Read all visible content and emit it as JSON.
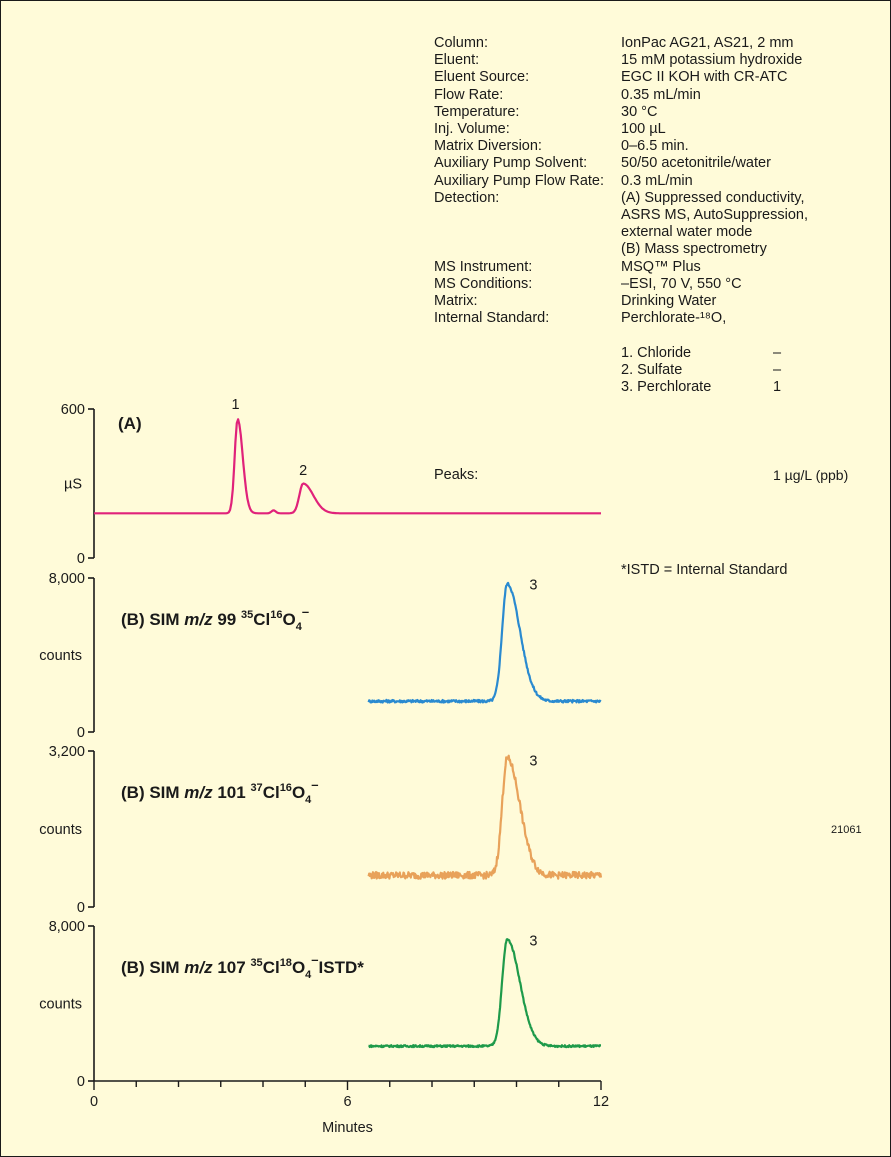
{
  "conditions": [
    {
      "label": "Column:",
      "value": [
        "IonPac AG21, AS21, 2 mm"
      ]
    },
    {
      "label": "Eluent:",
      "value": [
        "15 mM potassium hydroxide"
      ]
    },
    {
      "label": "Eluent Source:",
      "value": [
        "EGC II KOH with CR-ATC"
      ]
    },
    {
      "label": "Flow Rate:",
      "value": [
        "0.35 mL/min"
      ]
    },
    {
      "label": "Temperature:",
      "value": [
        "30 °C"
      ]
    },
    {
      "label": "Inj. Volume:",
      "value": [
        "100 µL"
      ]
    },
    {
      "label": "Matrix Diversion:",
      "value": [
        "0–6.5 min."
      ]
    },
    {
      "label": "Auxiliary Pump Solvent:",
      "value": [
        "50/50 acetonitrile/water"
      ]
    },
    {
      "label": "Auxiliary Pump Flow Rate:",
      "value": [
        "0.3 mL/min"
      ]
    },
    {
      "label": "Detection:",
      "value": [
        "(A) Suppressed conductivity,",
        "ASRS MS, AutoSuppression,",
        "external water mode",
        "(B) Mass spectrometry"
      ]
    },
    {
      "label": "MS Instrument:",
      "value": [
        "MSQ™ Plus"
      ]
    },
    {
      "label": "MS Conditions:",
      "value": [
        "–ESI, 70 V, 550 °C"
      ]
    },
    {
      "label": "Matrix:",
      "value": [
        "Drinking Water"
      ]
    },
    {
      "label": "Internal Standard:",
      "value": [
        "Perchlorate-¹⁸O,"
      ]
    }
  ],
  "internal_standard_conc": "1 µg/L (ppb)",
  "peaks_label": "Peaks:",
  "peaks": [
    {
      "name": "1. Chloride",
      "conc": "–"
    },
    {
      "name": "2. Sulfate",
      "conc": "–"
    },
    {
      "name": "3. Perchlorate",
      "conc": "1"
    }
  ],
  "footnote": "*ISTD = Internal Standard",
  "figure_id": "21061",
  "chart_data": {
    "type": "line",
    "xlabel": "Minutes",
    "xlim": [
      0,
      12
    ],
    "xticks": [
      "0",
      "6",
      "12"
    ],
    "panels": [
      {
        "title": {
          "prefix": "(A)",
          "mz": "",
          "cl": "",
          "o": "",
          "charge": "",
          "suffix": ""
        },
        "ylabel": "µS",
        "ylim": [
          0,
          600
        ],
        "yticks": [
          "0",
          "600"
        ],
        "color": "#e0227a",
        "x_range": [
          0,
          12
        ],
        "baseline": 180,
        "noise": 0,
        "peaks": [
          {
            "x": 3.4,
            "y": 560,
            "w": 0.07,
            "tail": 0.05
          },
          {
            "x": 4.25,
            "y": 192,
            "w": 0.05,
            "tail": 0.0
          },
          {
            "x": 4.95,
            "y": 300,
            "w": 0.09,
            "tail": 0.15
          }
        ],
        "labels": [
          {
            "text": "1",
            "x": 3.35,
            "y": 600
          },
          {
            "text": "2",
            "x": 4.95,
            "y": 335
          }
        ]
      },
      {
        "title": {
          "prefix": "(B) SIM ",
          "mz": "99",
          "cl": "35",
          "o": "16",
          "charge": "–",
          "suffix": ""
        },
        "ylabel": "counts",
        "ylim": [
          0,
          8000
        ],
        "yticks": [
          "0",
          "8,000"
        ],
        "color": "#2a8ad0",
        "x_range": [
          6.5,
          12
        ],
        "baseline": 1600,
        "noise": 70,
        "peaks": [
          {
            "x": 9.78,
            "y": 7700,
            "w": 0.12,
            "tail": 0.18
          }
        ],
        "labels": [
          {
            "text": "3",
            "x": 10.4,
            "y": 7400
          }
        ]
      },
      {
        "title": {
          "prefix": "(B) SIM ",
          "mz": "101",
          "cl": "37",
          "o": "16",
          "charge": "–",
          "suffix": ""
        },
        "ylabel": "counts",
        "ylim": [
          0,
          3200
        ],
        "yticks": [
          "0",
          "3,200"
        ],
        "color": "#e8a25a",
        "x_range": [
          6.5,
          12
        ],
        "baseline": 650,
        "noise": 70,
        "peaks": [
          {
            "x": 9.78,
            "y": 3050,
            "w": 0.12,
            "tail": 0.18
          }
        ],
        "labels": [
          {
            "text": "3",
            "x": 10.4,
            "y": 2900
          }
        ]
      },
      {
        "title": {
          "prefix": "(B) SIM ",
          "mz": "107",
          "cl": "35",
          "o": "18",
          "charge": "–",
          "suffix": "ISTD*"
        },
        "ylabel": "counts",
        "ylim": [
          0,
          8000
        ],
        "yticks": [
          "0",
          "8,000"
        ],
        "color": "#1e9a4a",
        "x_range": [
          6.5,
          12
        ],
        "baseline": 1800,
        "noise": 50,
        "peaks": [
          {
            "x": 9.78,
            "y": 7300,
            "w": 0.12,
            "tail": 0.18
          }
        ],
        "labels": [
          {
            "text": "3",
            "x": 10.4,
            "y": 7000
          }
        ]
      }
    ]
  }
}
